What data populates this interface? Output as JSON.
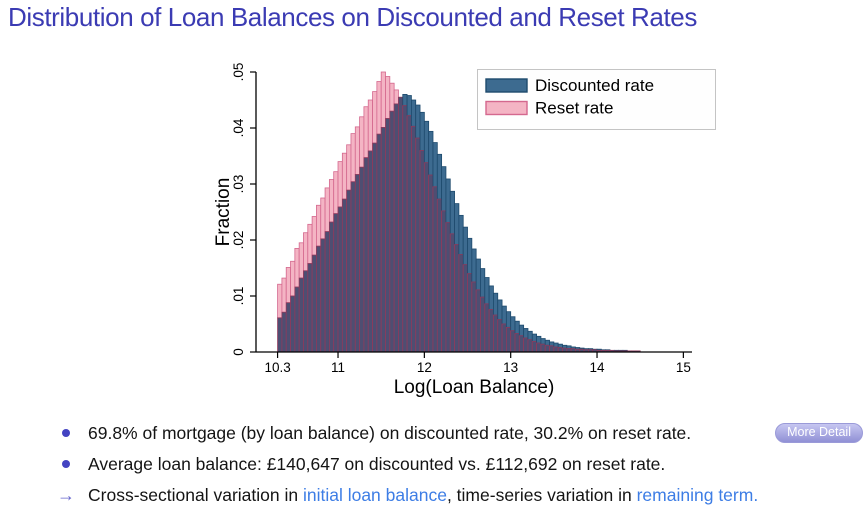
{
  "slide": {
    "title": "Distribution of Loan Balances on Discounted and Reset Rates",
    "bullets": [
      {
        "marker": "dot",
        "segments": [
          {
            "text": "69.8% of mortgage (by loan balance) on discounted rate, 30.2% on reset rate.",
            "style": "normal"
          }
        ],
        "button": "More Detail"
      },
      {
        "marker": "dot",
        "segments": [
          {
            "text": "Average loan balance: £140,647 on discounted vs. £112,692 on reset rate.",
            "style": "normal"
          }
        ]
      },
      {
        "marker": "arrow",
        "segments": [
          {
            "text": "Cross-sectional variation in ",
            "style": "normal"
          },
          {
            "text": "initial loan balance",
            "style": "link"
          },
          {
            "text": ", time-series variation in ",
            "style": "normal"
          },
          {
            "text": "remaining term.",
            "style": "link"
          }
        ]
      }
    ]
  },
  "colors": {
    "title": "#3b3bb3",
    "bullet": "#4343c2",
    "arrow": "#6666cc",
    "link": "#3d7de5",
    "button_bg": "#a0a0dd",
    "button_text": "#ffffff",
    "discounted_fill": "#3d6b90",
    "discounted_stroke": "#1e4a6d",
    "reset_fill": "#f4b4c4",
    "reset_stroke": "#d4688e",
    "overlap_fill": "#4e4e72",
    "overlap_stroke": "#8e3a5c",
    "axis": "#000000",
    "legend_border": "#c4c4c4",
    "legend_bg": "#fefefe"
  },
  "chart_data": {
    "type": "bar",
    "subtype": "overlaid-histogram",
    "title": "",
    "xlabel": "Log(Loan Balance)",
    "ylabel": "Fraction",
    "xlim": [
      10.05,
      15.1
    ],
    "ylim": [
      0,
      0.05
    ],
    "grid": false,
    "x_ticks": [
      10.3,
      11,
      12,
      13,
      14,
      15
    ],
    "x_tick_labels": [
      "10.3",
      "11",
      "12",
      "13",
      "14",
      "15"
    ],
    "y_ticks": [
      0,
      0.01,
      0.02,
      0.03,
      0.04,
      0.05
    ],
    "y_tick_labels": [
      "0",
      ".01",
      ".02",
      ".03",
      ".04",
      ".05"
    ],
    "bin_start": 10.3,
    "bin_width": 0.05,
    "n_bins": 84,
    "legend": {
      "position": "top-right",
      "entries": [
        {
          "label": "Discounted rate",
          "series": "discounted"
        },
        {
          "label": "Reset rate",
          "series": "reset"
        }
      ]
    },
    "series": [
      {
        "name": "Discounted rate",
        "key": "discounted",
        "fill": "#3d6b90",
        "stroke": "#1e4a6d",
        "values": [
          0.0061,
          0.0071,
          0.0088,
          0.01,
          0.0116,
          0.0132,
          0.0145,
          0.0158,
          0.0173,
          0.0189,
          0.0202,
          0.0215,
          0.0232,
          0.0247,
          0.0259,
          0.0273,
          0.0289,
          0.0304,
          0.0317,
          0.033,
          0.0347,
          0.0359,
          0.0373,
          0.0389,
          0.0401,
          0.0417,
          0.043,
          0.0443,
          0.0455,
          0.046,
          0.0458,
          0.045,
          0.0441,
          0.0428,
          0.0412,
          0.0394,
          0.0374,
          0.0353,
          0.0331,
          0.0309,
          0.0287,
          0.0265,
          0.0244,
          0.0223,
          0.0203,
          0.0184,
          0.0166,
          0.0149,
          0.0133,
          0.0118,
          0.0105,
          0.0093,
          0.0082,
          0.0072,
          0.0063,
          0.0055,
          0.0048,
          0.0042,
          0.0037,
          0.0032,
          0.0028,
          0.0024,
          0.0021,
          0.0018,
          0.0016,
          0.0014,
          0.0012,
          0.0011,
          0.0009,
          0.0008,
          0.0007,
          0.0006,
          0.0006,
          0.0005,
          0.0005,
          0.0004,
          0.0004,
          0.0003,
          0.0003,
          0.0003,
          0.0003,
          0.0002,
          0.0002,
          0.0002
        ]
      },
      {
        "name": "Reset rate",
        "key": "reset",
        "fill": "#f4b4c4",
        "stroke": "#d4688e",
        "values": [
          0.0121,
          0.0132,
          0.0151,
          0.0162,
          0.0185,
          0.0195,
          0.0213,
          0.0228,
          0.0242,
          0.0262,
          0.0275,
          0.0293,
          0.0308,
          0.0322,
          0.034,
          0.0355,
          0.037,
          0.039,
          0.0402,
          0.042,
          0.0438,
          0.045,
          0.0465,
          0.0483,
          0.05,
          0.0492,
          0.048,
          0.0468,
          0.0455,
          0.044,
          0.0422,
          0.0403,
          0.0382,
          0.036,
          0.0338,
          0.0316,
          0.0295,
          0.0273,
          0.0252,
          0.0231,
          0.0211,
          0.0192,
          0.0174,
          0.0156,
          0.014,
          0.0125,
          0.0111,
          0.0098,
          0.0086,
          0.0076,
          0.0066,
          0.0058,
          0.005,
          0.0044,
          0.0038,
          0.0033,
          0.0029,
          0.0025,
          0.0022,
          0.0019,
          0.0016,
          0.0014,
          0.0012,
          0.0011,
          0.0009,
          0.0008,
          0.0007,
          0.0006,
          0.0006,
          0.0005,
          0.0005,
          0.0004,
          0.0004,
          0.0004,
          0.0003,
          0.0003,
          0.0003,
          0.0003,
          0.0002,
          0.0002,
          0.0002,
          0.0002,
          0.0002,
          0.0002
        ]
      }
    ],
    "overlap_fill": "#4e4e72",
    "overlap_stroke": "#8e3a5c"
  }
}
